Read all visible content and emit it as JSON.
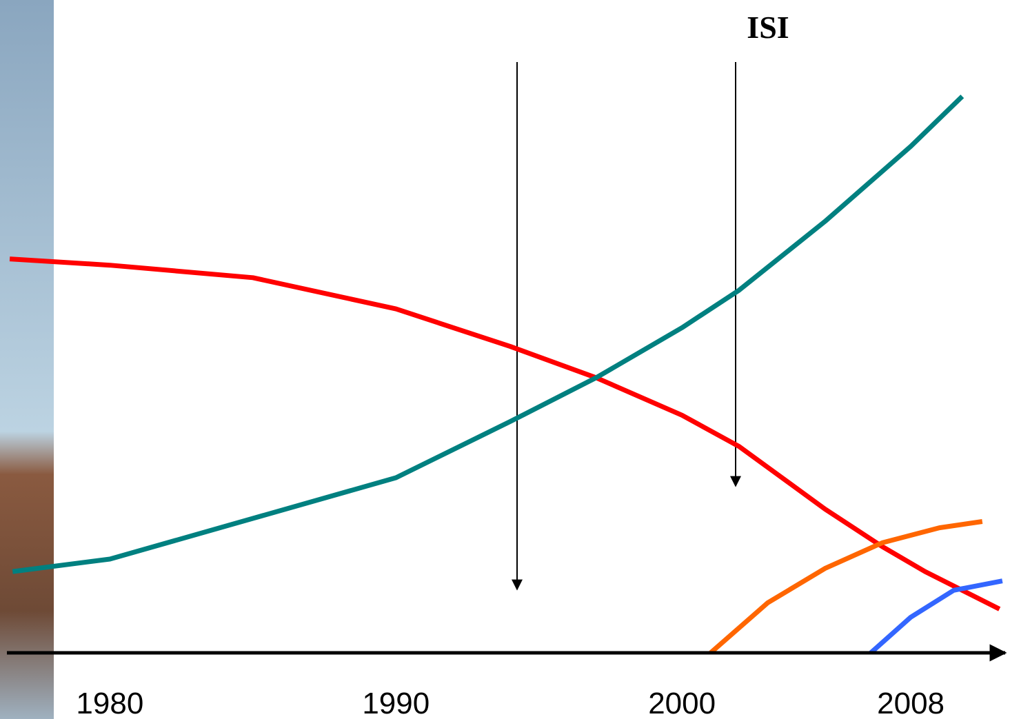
{
  "chart_data": {
    "type": "line",
    "annotations": [
      "ISI"
    ],
    "xlim": [
      1976.4,
      2011.3
    ],
    "ylim": [
      0,
      100
    ],
    "xticks": [
      1980,
      1990,
      2000,
      2008
    ],
    "series": [
      {
        "color": "#ff0000",
        "x": [
          1976.5,
          1980,
          1985,
          1990,
          1994,
          1997,
          2000,
          2002,
          2005,
          2007,
          2008.5,
          2011.1
        ],
        "values": [
          63,
          62,
          60,
          55,
          49,
          44,
          38,
          33,
          23,
          17,
          13,
          7
        ]
      },
      {
        "color": "#008080",
        "x": [
          1976.6,
          1980,
          1985,
          1990,
          1994,
          1997,
          2000,
          2002,
          2005,
          2008,
          2009.8
        ],
        "values": [
          13,
          15,
          21.5,
          28,
          37,
          44,
          52,
          58,
          69,
          81,
          89
        ]
      },
      {
        "color": "#ff6600",
        "x": [
          2001,
          2003,
          2005,
          2007,
          2009,
          2010.5
        ],
        "values": [
          0,
          8,
          13.5,
          17.6,
          20,
          21
        ]
      },
      {
        "color": "#3366ff",
        "x": [
          2006.6,
          2008,
          2009.5,
          2011.2
        ],
        "values": [
          0,
          5.7,
          10,
          11.5
        ]
      }
    ]
  }
}
